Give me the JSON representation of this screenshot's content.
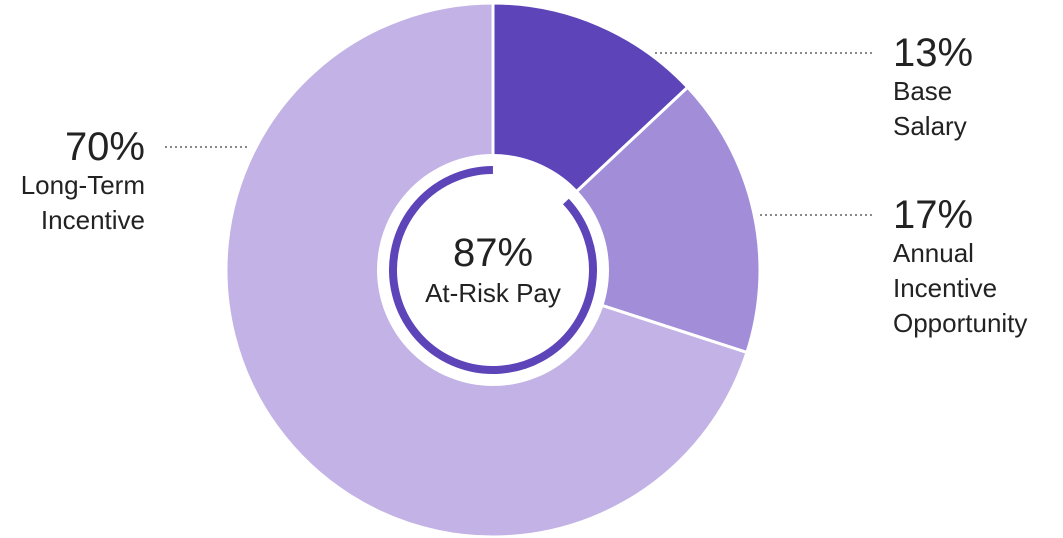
{
  "chart_data": {
    "type": "donut",
    "categories": [
      "Base Salary",
      "Annual Incentive Opportunity",
      "Long-Term Incentive"
    ],
    "values": [
      13,
      17,
      70
    ],
    "value_labels": [
      "13%",
      "17%",
      "70%"
    ],
    "colors": [
      "#5d45b9",
      "#a28dd9",
      "#c2b2e5"
    ],
    "center": {
      "value": 87,
      "value_label": "87%",
      "label": "At-Risk Pay"
    }
  }
}
